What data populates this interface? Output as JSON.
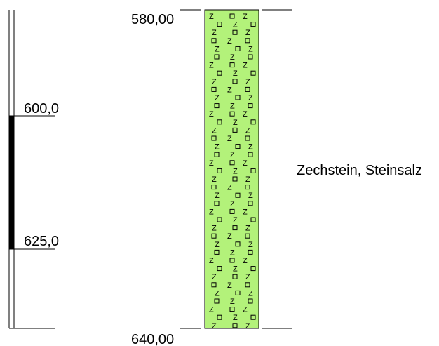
{
  "ruler": {
    "marks": [
      {
        "label": "600,0"
      },
      {
        "label": "625,0"
      }
    ],
    "scale": {
      "top_depth": 580.0,
      "bottom_depth": 640.0
    },
    "highlight": {
      "from": 600.0,
      "to": 625.0,
      "color": "#000000"
    }
  },
  "column": {
    "top_label": "580,00",
    "bottom_label": "640,00",
    "fill_color": "#b3f27a",
    "unit_label": "Zechstein, Steinsalz"
  }
}
